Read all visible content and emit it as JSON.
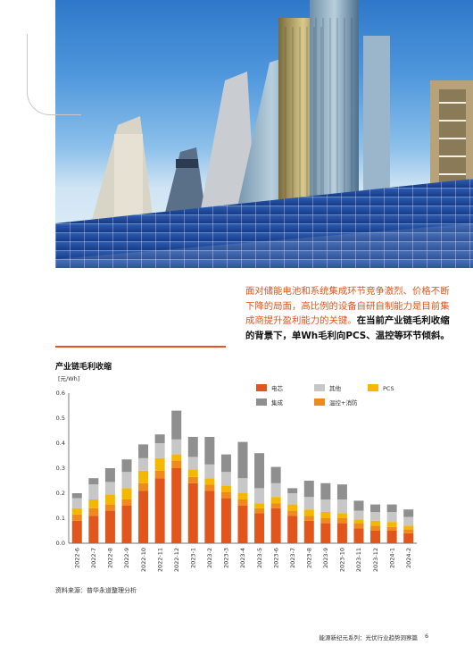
{
  "header": {
    "quote_part1": "面对储能电池和系统集成环节竞争激烈、价格不断下降的局面，高比例的设备自研自制能力是目前集成商提升盈利能力的关键。",
    "quote_part2": "在当前产业链毛利收缩的背景下，单Wh毛利向PCS、温控等环节倾斜。"
  },
  "chart": {
    "title": "产业链毛利收缩",
    "unit": "[元/Wh]"
  },
  "chart_data": {
    "type": "bar",
    "stacked": true,
    "title": "产业链毛利收缩",
    "ylabel": "[元/Wh]",
    "ylim": [
      0,
      0.6
    ],
    "yticks": [
      "0.0",
      "0.1",
      "0.2",
      "0.3",
      "0.4",
      "0.5",
      "0.6"
    ],
    "legend_position": "top-right",
    "categories": [
      "2022-6",
      "2022-7",
      "2022-8",
      "2022-9",
      "2022-10",
      "2022-11",
      "2022-12",
      "2023-1",
      "2023-2",
      "2023-3",
      "2023-4",
      "2023-5",
      "2023-6",
      "2023-7",
      "2023-8",
      "2023-9",
      "2023-10",
      "2023-11",
      "2023-12",
      "2024-1",
      "2024-2"
    ],
    "series": [
      {
        "name": "电芯",
        "color": "#e0561c",
        "values": [
          0.09,
          0.11,
          0.13,
          0.15,
          0.21,
          0.26,
          0.3,
          0.24,
          0.21,
          0.18,
          0.15,
          0.12,
          0.14,
          0.11,
          0.09,
          0.08,
          0.08,
          0.06,
          0.05,
          0.05,
          0.04
        ]
      },
      {
        "name": "温控+消防",
        "color": "#f08a1c",
        "values": [
          0.025,
          0.03,
          0.025,
          0.025,
          0.03,
          0.03,
          0.03,
          0.025,
          0.025,
          0.025,
          0.025,
          0.02,
          0.02,
          0.02,
          0.02,
          0.02,
          0.02,
          0.02,
          0.02,
          0.015,
          0.015
        ]
      },
      {
        "name": "PCS",
        "color": "#f5b800",
        "values": [
          0.025,
          0.035,
          0.04,
          0.045,
          0.05,
          0.05,
          0.025,
          0.03,
          0.025,
          0.025,
          0.025,
          0.02,
          0.025,
          0.025,
          0.025,
          0.025,
          0.02,
          0.015,
          0.02,
          0.02,
          0.015
        ]
      },
      {
        "name": "其他",
        "color": "#c7c7c7",
        "values": [
          0.04,
          0.06,
          0.05,
          0.065,
          0.05,
          0.06,
          0.06,
          0.05,
          0.055,
          0.055,
          0.06,
          0.06,
          0.055,
          0.045,
          0.05,
          0.05,
          0.055,
          0.035,
          0.035,
          0.04,
          0.035
        ]
      },
      {
        "name": "集成",
        "color": "#8f8f8f",
        "values": [
          0.02,
          0.025,
          0.055,
          0.05,
          0.055,
          0.035,
          0.115,
          0.08,
          0.11,
          0.07,
          0.145,
          0.14,
          0.065,
          0.02,
          0.065,
          0.065,
          0.06,
          0.04,
          0.03,
          0.03,
          0.03
        ]
      }
    ],
    "legend": [
      {
        "name": "电芯",
        "color": "#e0561c"
      },
      {
        "name": "其他",
        "color": "#c7c7c7"
      },
      {
        "name": "PCS",
        "color": "#f5b800"
      },
      {
        "name": "集成",
        "color": "#8f8f8f"
      },
      {
        "name": "温控+消防",
        "color": "#f08a1c"
      }
    ]
  },
  "source": "资料来源：普华永道整理分析",
  "footer": {
    "series_title": "能源新纪元系列：光伏行业趋势洞察篇",
    "page_number": "6"
  }
}
